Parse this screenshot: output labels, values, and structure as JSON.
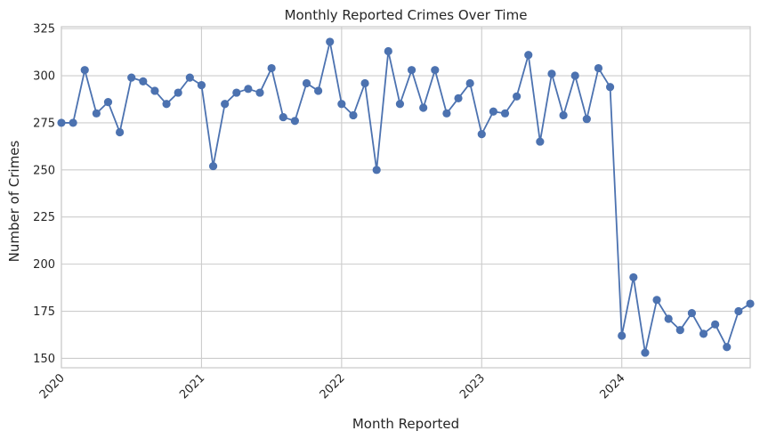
{
  "chart_data": {
    "type": "line",
    "title": "Monthly Reported Crimes Over Time",
    "xlabel": "Month Reported",
    "ylabel": "Number of Crimes",
    "ylim": [
      145,
      326
    ],
    "xlim": [
      "2020-01",
      "2024-12"
    ],
    "grid": true,
    "legend": "none",
    "colors": {
      "series": "#4c72b0",
      "grid": "#cccccc",
      "axes": "#cccccc"
    },
    "x_ticks": [
      "2020",
      "2021",
      "2022",
      "2023",
      "2024"
    ],
    "y_ticks": [
      150,
      175,
      200,
      225,
      250,
      275,
      300,
      325
    ],
    "series": [
      {
        "x": [
          "2020-01",
          "2020-02",
          "2020-03",
          "2020-04",
          "2020-05",
          "2020-06",
          "2020-07",
          "2020-08",
          "2020-09",
          "2020-10",
          "2020-11",
          "2020-12",
          "2021-01",
          "2021-02",
          "2021-03",
          "2021-04",
          "2021-05",
          "2021-06",
          "2021-07",
          "2021-08",
          "2021-09",
          "2021-10",
          "2021-11",
          "2021-12",
          "2022-01",
          "2022-02",
          "2022-03",
          "2022-04",
          "2022-05",
          "2022-06",
          "2022-07",
          "2022-08",
          "2022-09",
          "2022-10",
          "2022-11",
          "2022-12",
          "2023-01",
          "2023-02",
          "2023-03",
          "2023-04",
          "2023-05",
          "2023-06",
          "2023-07",
          "2023-08",
          "2023-09",
          "2023-10",
          "2023-11",
          "2023-12",
          "2024-01",
          "2024-02",
          "2024-03",
          "2024-04",
          "2024-05",
          "2024-06",
          "2024-07",
          "2024-08",
          "2024-09",
          "2024-10",
          "2024-11",
          "2024-12"
        ],
        "values": [
          275,
          275,
          303,
          280,
          286,
          270,
          299,
          297,
          292,
          285,
          291,
          299,
          295,
          252,
          285,
          291,
          293,
          291,
          304,
          278,
          276,
          296,
          292,
          318,
          285,
          279,
          296,
          250,
          313,
          285,
          303,
          283,
          303,
          280,
          288,
          296,
          269,
          281,
          280,
          289,
          311,
          265,
          301,
          279,
          300,
          277,
          304,
          294,
          162,
          193,
          153,
          181,
          171,
          165,
          174,
          163,
          168,
          156,
          175,
          179
        ]
      }
    ]
  }
}
